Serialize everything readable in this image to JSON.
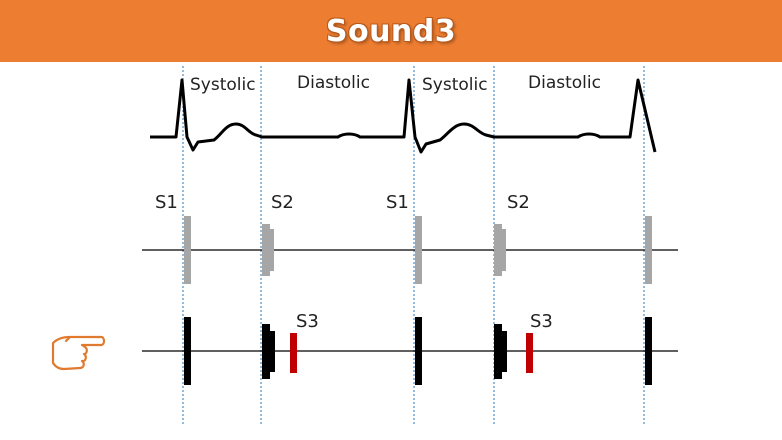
{
  "title": "Sound3",
  "colors": {
    "banner": "#ED7D31",
    "ecg": "#000000",
    "guide": "#2E75B6",
    "normal_sounds": "#A6A6A6",
    "abnormal_sounds": "#000000",
    "s3_marker": "#C00000",
    "pointer": "#E07A2E"
  },
  "phases": [
    "Systolic",
    "Diastolic",
    "Systolic",
    "Diastolic"
  ],
  "normal_row": {
    "labels": [
      "S1",
      "S2",
      "S1",
      "S2"
    ]
  },
  "s3_row": {
    "labels": [
      "S3",
      "S3"
    ],
    "pointer_icon": "pointing-hand-icon"
  }
}
